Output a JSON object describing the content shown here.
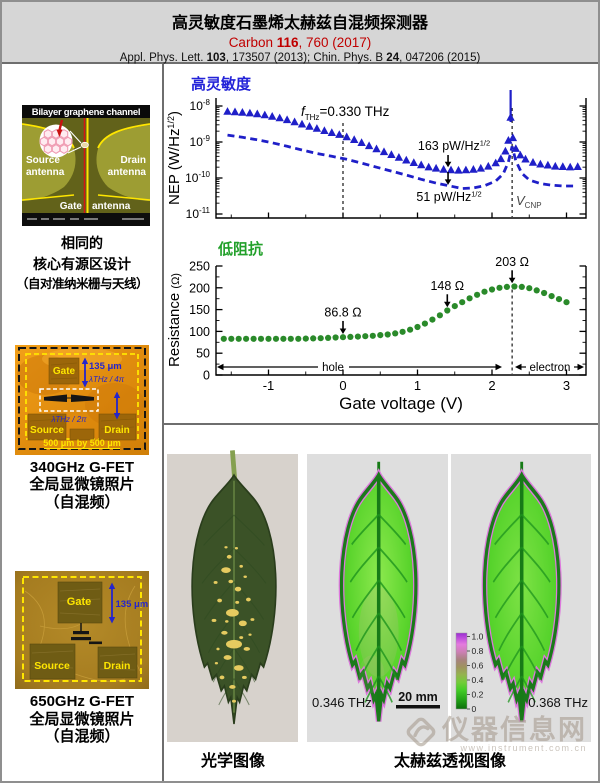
{
  "header": {
    "title": "高灵敏度石墨烯太赫兹自混频探测器",
    "ref1_parts": [
      "Carbon ",
      "116",
      ", 760 (2017)"
    ],
    "ref2_parts": [
      "Appl. Phys. Lett. ",
      "103",
      ", 173507 (2013); Chin. Phys. B ",
      "24",
      ", 047206 (2015)"
    ]
  },
  "left": {
    "schematic": {
      "top_label": "Bilayer graphene channel",
      "source1": "Source",
      "source2": "antenna",
      "drain1": "Drain",
      "drain2": "antenna",
      "gate1": "Gate",
      "gate2": "antenna"
    },
    "note_lines": [
      "相同的",
      "核心有源区设计",
      "（自对准纳米栅与天线）"
    ],
    "fet340": {
      "gate": "Gate",
      "source": "Source",
      "drain": "Drain",
      "dim": "135 μm",
      "lam4": "λTHz / 4π",
      "lam2": "λTHz / 2π",
      "size": "500 μm by 500 μm",
      "caption": [
        "340GHz G-FET",
        "全局显微镜照片",
        "（自混频）"
      ]
    },
    "fet650": {
      "gate": "Gate",
      "source": "Source",
      "drain": "Drain",
      "dim": "135 μm",
      "caption": [
        "650GHz G-FET",
        "全局显微镜照片",
        "（自混频）"
      ]
    }
  },
  "chart_data": [
    {
      "type": "scatter",
      "panel": "nep",
      "title": "高灵敏度",
      "title_color": "#2323d8",
      "ylabel_main": "NEP (W/Hz",
      "ylabel_sup": "1/2",
      "ylabel_end": ")",
      "yscale": "log",
      "ylim": [
        1e-11,
        1e-08
      ],
      "xlim": [
        -1.74,
        3.26
      ],
      "x_ticks": [
        -1,
        0,
        1,
        2,
        3
      ],
      "vlines": [
        0,
        2.27
      ],
      "freq_annotation": {
        "f": "f",
        "sub": "THz",
        "rest": "=0.330 THz"
      },
      "vcnp": {
        "main": "V",
        "sub": "CNP"
      },
      "series": [
        {
          "name": "NEP triangles",
          "marker": "triangle",
          "color": "#1f1fc8",
          "points": [
            [
              -1.55,
              7e-09
            ],
            [
              -1.45,
              6.8e-09
            ],
            [
              -1.35,
              6.6e-09
            ],
            [
              -1.25,
              6.3e-09
            ],
            [
              -1.15,
              6e-09
            ],
            [
              -1.05,
              5.6e-09
            ],
            [
              -0.95,
              5.1e-09
            ],
            [
              -0.85,
              4.6e-09
            ],
            [
              -0.75,
              4.1e-09
            ],
            [
              -0.65,
              3.6e-09
            ],
            [
              -0.55,
              3.1e-09
            ],
            [
              -0.45,
              2.7e-09
            ],
            [
              -0.35,
              2.35e-09
            ],
            [
              -0.25,
              2.05e-09
            ],
            [
              -0.15,
              1.8e-09
            ],
            [
              -0.05,
              1.6e-09
            ],
            [
              0.05,
              1.38e-09
            ],
            [
              0.15,
              1.15e-09
            ],
            [
              0.25,
              9.5e-10
            ],
            [
              0.35,
              7.8e-10
            ],
            [
              0.45,
              6.4e-10
            ],
            [
              0.55,
              5.3e-10
            ],
            [
              0.65,
              4.4e-10
            ],
            [
              0.75,
              3.7e-10
            ],
            [
              0.85,
              3.1e-10
            ],
            [
              0.95,
              2.65e-10
            ],
            [
              1.05,
              2.3e-10
            ],
            [
              1.15,
              2e-10
            ],
            [
              1.25,
              1.85e-10
            ],
            [
              1.35,
              1.72e-10
            ],
            [
              1.45,
              1.66e-10
            ],
            [
              1.55,
              1.63e-10
            ],
            [
              1.65,
              1.66e-10
            ],
            [
              1.75,
              1.72e-10
            ],
            [
              1.85,
              1.85e-10
            ],
            [
              1.95,
              2.1e-10
            ],
            [
              2.05,
              2.6e-10
            ],
            [
              2.12,
              3.4e-10
            ],
            [
              2.18,
              5.5e-10
            ],
            [
              2.22,
              1.1e-09
            ],
            [
              2.25,
              4.8e-09
            ],
            [
              2.28,
              1.3e-09
            ],
            [
              2.32,
              6.5e-10
            ],
            [
              2.38,
              4.3e-10
            ],
            [
              2.45,
              3.3e-10
            ],
            [
              2.55,
              2.7e-10
            ],
            [
              2.65,
              2.4e-10
            ],
            [
              2.75,
              2.25e-10
            ],
            [
              2.85,
              2.1e-10
            ],
            [
              2.95,
              2.05e-10
            ],
            [
              3.05,
              2e-10
            ],
            [
              3.15,
              2.05e-10
            ]
          ]
        },
        {
          "name": "NEP dashed",
          "style": "dashed",
          "color": "#1f1fc8",
          "points": [
            [
              -1.55,
              1.55e-09
            ],
            [
              -1.35,
              1.35e-09
            ],
            [
              -1.15,
              1.15e-09
            ],
            [
              -0.95,
              9.5e-10
            ],
            [
              -0.75,
              7.6e-10
            ],
            [
              -0.55,
              6e-10
            ],
            [
              -0.35,
              4.8e-10
            ],
            [
              -0.15,
              4e-10
            ],
            [
              0.05,
              3.3e-10
            ],
            [
              0.25,
              2.6e-10
            ],
            [
              0.45,
              2e-10
            ],
            [
              0.65,
              1.55e-10
            ],
            [
              0.85,
              1.2e-10
            ],
            [
              1.05,
              9.2e-11
            ],
            [
              1.25,
              7.2e-11
            ],
            [
              1.45,
              5.9e-11
            ],
            [
              1.6,
              5.1e-11
            ],
            [
              1.75,
              5.3e-11
            ],
            [
              1.9,
              6.1e-11
            ],
            [
              2.05,
              8.2e-11
            ],
            [
              2.15,
              1.3e-10
            ],
            [
              2.22,
              2.8e-10
            ],
            [
              2.27,
              7.5e-10
            ],
            [
              2.32,
              3e-10
            ],
            [
              2.4,
              1.35e-10
            ],
            [
              2.5,
              8.8e-11
            ],
            [
              2.65,
              7e-11
            ],
            [
              2.8,
              6.3e-11
            ],
            [
              2.95,
              6e-11
            ],
            [
              3.1,
              6e-11
            ]
          ]
        }
      ],
      "annotations": [
        {
          "text": "163 pW/Hz",
          "sup": "1/2",
          "x": 1.41,
          "arrow_to": 1.7e-10
        },
        {
          "text": "51 pW/Hz",
          "sup": "1/2",
          "x": 1.41,
          "arrow_to": 5.5e-11
        }
      ]
    },
    {
      "type": "scatter",
      "panel": "resistance",
      "title": "低阻抗",
      "title_color": "#22a02a",
      "xlabel": "Gate voltage (V)",
      "ylabel_main": "Resistance ",
      "ylabel_unit": "(Ω)",
      "ylim": [
        0,
        250
      ],
      "y_ticks": [
        0,
        50,
        100,
        150,
        200,
        250
      ],
      "x_ticks": [
        -1,
        0,
        1,
        2,
        3
      ],
      "vline": 2.27,
      "regions": {
        "hole": "hole",
        "electron": "electron"
      },
      "series": [
        {
          "name": "Resistance",
          "marker": "circle",
          "color": "#2a8a2a",
          "points": [
            [
              -1.6,
              83
            ],
            [
              -1.5,
              83
            ],
            [
              -1.4,
              83
            ],
            [
              -1.3,
              83
            ],
            [
              -1.2,
              83
            ],
            [
              -1.1,
              83
            ],
            [
              -1.0,
              83
            ],
            [
              -0.9,
              83
            ],
            [
              -0.8,
              83
            ],
            [
              -0.7,
              83
            ],
            [
              -0.6,
              83
            ],
            [
              -0.5,
              83.5
            ],
            [
              -0.4,
              84
            ],
            [
              -0.3,
              84.5
            ],
            [
              -0.2,
              85
            ],
            [
              -0.1,
              86
            ],
            [
              0,
              86.8
            ],
            [
              0.1,
              87.5
            ],
            [
              0.2,
              88
            ],
            [
              0.3,
              89
            ],
            [
              0.4,
              90
            ],
            [
              0.5,
              91.5
            ],
            [
              0.6,
              93
            ],
            [
              0.7,
              95.5
            ],
            [
              0.8,
              99
            ],
            [
              0.9,
              104
            ],
            [
              1.0,
              110
            ],
            [
              1.1,
              118
            ],
            [
              1.2,
              127
            ],
            [
              1.3,
              137
            ],
            [
              1.4,
              148
            ],
            [
              1.5,
              158
            ],
            [
              1.6,
              167
            ],
            [
              1.7,
              176
            ],
            [
              1.8,
              184
            ],
            [
              1.9,
              191
            ],
            [
              2.0,
              196
            ],
            [
              2.1,
              200
            ],
            [
              2.2,
              202
            ],
            [
              2.3,
              203
            ],
            [
              2.4,
              202
            ],
            [
              2.5,
              199
            ],
            [
              2.6,
              194
            ],
            [
              2.7,
              188
            ],
            [
              2.8,
              181
            ],
            [
              2.9,
              174
            ],
            [
              3.0,
              167
            ]
          ]
        }
      ],
      "annotations": [
        {
          "text": "86.8 Ω",
          "x": 0
        },
        {
          "text": "148 Ω",
          "x": 1.4
        },
        {
          "text": "203 Ω",
          "x": 2.27
        }
      ]
    }
  ],
  "leaf": {
    "optical_caption": "光学图像",
    "thz_caption": "太赫兹透视图像",
    "freq1": "0.346 THz",
    "freq2": "0.368 THz",
    "scale": "20 mm",
    "colorbar_ticks": [
      "1.0",
      "0.8",
      "0.6",
      "0.4",
      "0.2",
      "0"
    ]
  },
  "watermark": {
    "site_name": "仪器信息网",
    "url": "www.instrument.com.cn"
  }
}
